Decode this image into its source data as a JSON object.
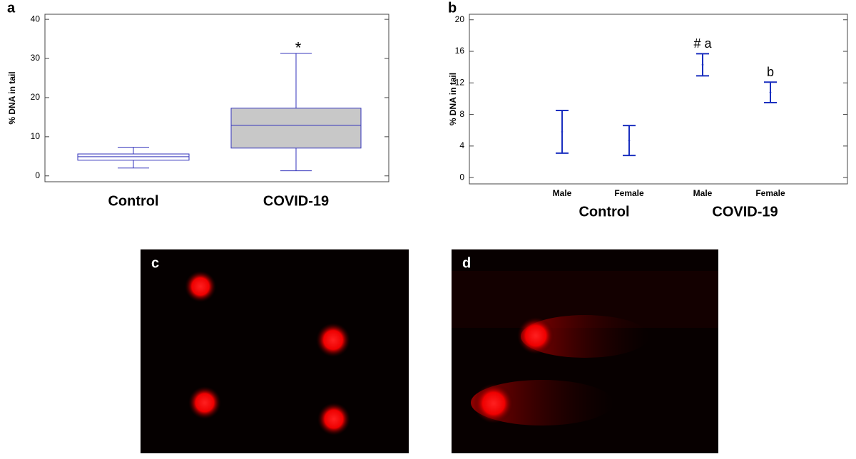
{
  "chart_data": [
    {
      "type": "box",
      "panel": "a",
      "ylabel": "% DNA in tail",
      "categories": [
        "Control",
        "COVID-19"
      ],
      "min": [
        2.0,
        1.3
      ],
      "q1": [
        4.0,
        7.1
      ],
      "median": [
        4.9,
        12.9
      ],
      "q3": [
        5.6,
        17.3
      ],
      "max": [
        7.3,
        31.3
      ],
      "annotations": [
        null,
        "*"
      ],
      "color": "#3333bb",
      "box_fill": [
        "#ffffff",
        "#c8c8c8"
      ],
      "ylim": [
        -1.5,
        41.3
      ],
      "yticks": [
        0,
        10,
        20,
        30,
        40
      ]
    },
    {
      "type": "errorbar",
      "panel": "b",
      "ylabel": "% DNA in tail",
      "categories": [
        "Male",
        "Female",
        "Male",
        "Female"
      ],
      "groups": [
        "Control",
        "COVID-19"
      ],
      "values": [
        5.8,
        4.7,
        14.3,
        10.8
      ],
      "errors": [
        2.7,
        1.9,
        1.4,
        1.3
      ],
      "annotations": [
        null,
        null,
        "# a",
        "b"
      ],
      "color": "#1a2fbf",
      "ylim": [
        -0.8,
        20.7
      ],
      "yticks": [
        0,
        4,
        8,
        12,
        16,
        20
      ]
    }
  ],
  "images": [
    {
      "label": "c"
    },
    {
      "label": "d"
    }
  ]
}
